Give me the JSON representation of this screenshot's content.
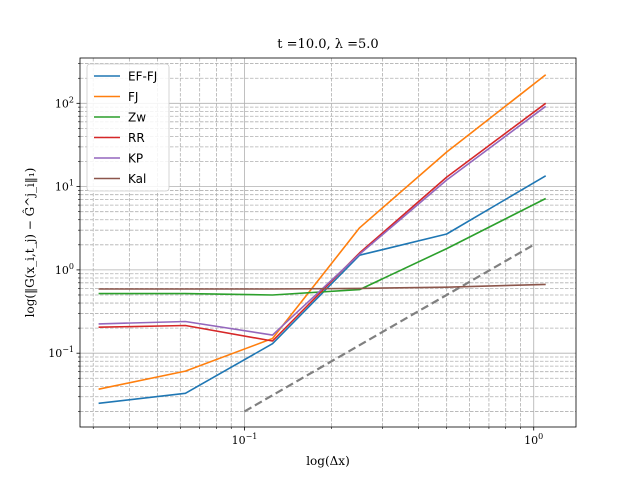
{
  "chart_data": {
    "type": "line",
    "title": "t =10.0, λ =5.0",
    "xlabel": "log(Δx)",
    "ylabel": "log(‖G(x_i,t_j) − Ĝ^j_i‖₁)",
    "xscale": "log",
    "yscale": "log",
    "xlim": [
      0.027,
      1.4
    ],
    "ylim": [
      0.013,
      350
    ],
    "x_ticks": [
      {
        "value": 0.1,
        "label": "10",
        "exp": "−1"
      },
      {
        "value": 1,
        "label": "10",
        "exp": "0"
      }
    ],
    "y_ticks": [
      {
        "value": 0.1,
        "label": "10",
        "exp": "−1"
      },
      {
        "value": 1,
        "label": "10",
        "exp": "0"
      },
      {
        "value": 10,
        "label": "10",
        "exp": "1"
      },
      {
        "value": 100,
        "label": "10",
        "exp": "2"
      }
    ],
    "grid": true,
    "legend_position": "top-left",
    "x": [
      0.0313,
      0.0625,
      0.125,
      0.25,
      0.5,
      1.1
    ],
    "series": [
      {
        "name": "EF-FJ",
        "color": "#1f77b4",
        "values": [
          0.025,
          0.033,
          0.13,
          1.5,
          2.7,
          13.5
        ]
      },
      {
        "name": "FJ",
        "color": "#ff7f0e",
        "values": [
          0.037,
          0.061,
          0.15,
          3.2,
          26,
          220
        ]
      },
      {
        "name": "Zw",
        "color": "#2ca02c",
        "values": [
          0.52,
          0.52,
          0.5,
          0.58,
          1.8,
          7.2
        ]
      },
      {
        "name": "RR",
        "color": "#d62728",
        "values": [
          0.205,
          0.215,
          0.14,
          1.6,
          13,
          100
        ]
      },
      {
        "name": "KP",
        "color": "#9467bd",
        "values": [
          0.225,
          0.24,
          0.165,
          1.55,
          12,
          92
        ]
      },
      {
        "name": "Kal",
        "color": "#8c564b",
        "values": [
          0.59,
          0.59,
          0.59,
          0.6,
          0.62,
          0.67
        ]
      }
    ],
    "reference_line": {
      "style": "dashed",
      "color": "#808080",
      "x": [
        0.1,
        1.0
      ],
      "y": [
        0.02,
        2.0
      ]
    }
  }
}
